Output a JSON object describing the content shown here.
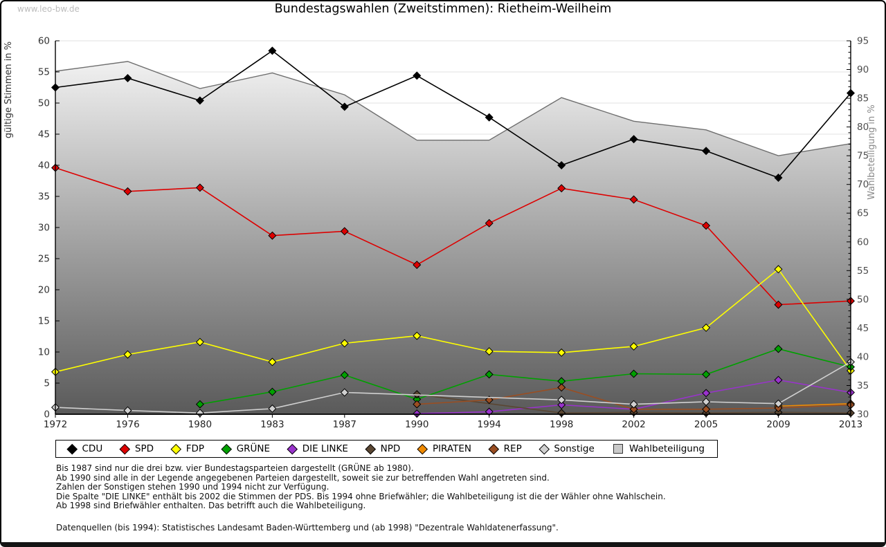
{
  "watermark": "www.leo-bw.de",
  "title": "Bundestagswahlen (Zweitstimmen): Rietheim-Weilheim",
  "chart_data": {
    "type": "line",
    "categories": [
      "1972",
      "1976",
      "1980",
      "1983",
      "1987",
      "1990",
      "1994",
      "1998",
      "2002",
      "2005",
      "2009",
      "2013"
    ],
    "ylabel_left": "gültige Stimmen in %",
    "ylabel_right": "Wahlbeteiligung in %",
    "ylim_left": [
      0,
      60
    ],
    "ylim_right": [
      30,
      95
    ],
    "ytick_step": 5,
    "grid": true,
    "legend_position": "bottom",
    "marker": "diamond",
    "series": [
      {
        "name": "CDU",
        "color": "#000000",
        "axis": "left",
        "kind": "line",
        "values": [
          52.5,
          54.0,
          50.4,
          58.4,
          49.4,
          54.4,
          47.7,
          40.0,
          44.2,
          42.3,
          38.0,
          51.6
        ]
      },
      {
        "name": "SPD",
        "color": "#dd0000",
        "axis": "left",
        "kind": "line",
        "values": [
          39.6,
          35.8,
          36.4,
          28.7,
          29.4,
          24.0,
          30.7,
          36.3,
          34.5,
          30.3,
          17.6,
          18.2
        ]
      },
      {
        "name": "FDP",
        "color": "#ffff00",
        "axis": "left",
        "kind": "line",
        "values": [
          6.8,
          9.6,
          11.6,
          8.4,
          11.4,
          12.6,
          10.1,
          9.9,
          10.9,
          13.9,
          23.3,
          7.0
        ]
      },
      {
        "name": "GRÜNE",
        "color": "#00a000",
        "axis": "left",
        "kind": "line",
        "values": [
          null,
          null,
          1.6,
          3.6,
          6.3,
          2.4,
          6.4,
          5.3,
          6.5,
          6.4,
          10.5,
          7.6
        ]
      },
      {
        "name": "DIE LINKE",
        "color": "#9933cc",
        "axis": "left",
        "kind": "line",
        "values": [
          null,
          null,
          null,
          null,
          null,
          0.1,
          0.4,
          1.5,
          0.8,
          3.4,
          5.5,
          3.5
        ]
      },
      {
        "name": "NPD",
        "color": "#5a4632",
        "axis": "left",
        "kind": "line",
        "values": [
          null,
          null,
          null,
          null,
          null,
          3.2,
          null,
          0.2,
          0.3,
          0.2,
          0.3,
          0.2
        ]
      },
      {
        "name": "PIRATEN",
        "color": "#f08a00",
        "axis": "left",
        "kind": "line",
        "values": [
          null,
          null,
          null,
          null,
          null,
          null,
          null,
          null,
          null,
          null,
          1.3,
          1.7
        ]
      },
      {
        "name": "REP",
        "color": "#9a4e22",
        "axis": "left",
        "kind": "line",
        "values": [
          null,
          null,
          null,
          null,
          null,
          1.6,
          2.3,
          4.3,
          0.8,
          0.8,
          1.0,
          1.5
        ]
      },
      {
        "name": "Sonstige",
        "color": "#d0d0d0",
        "axis": "left",
        "kind": "line",
        "values": [
          1.1,
          0.6,
          0.2,
          0.9,
          3.5,
          null,
          null,
          2.3,
          1.6,
          2.0,
          1.7,
          8.4
        ]
      },
      {
        "name": "Wahlbeteiligung",
        "color": "#c9c9c9",
        "axis": "right",
        "kind": "area",
        "values": [
          89.7,
          91.4,
          86.7,
          89.4,
          85.6,
          77.7,
          77.7,
          85.1,
          81.0,
          79.5,
          75.0,
          77.1
        ]
      }
    ]
  },
  "notes": [
    "Bis 1987 sind nur die drei bzw. vier Bundestagsparteien dargestellt (GRÜNE ab 1980).",
    "Ab 1990 sind alle in der Legende angegebenen Parteien dargestellt, soweit sie zur betreffenden Wahl angetreten sind.",
    "Zahlen der Sonstigen stehen 1990 und 1994 nicht zur Verfügung.",
    "Die Spalte \"DIE LINKE\" enthält bis 2002 die Stimmen der PDS. Bis 1994 ohne Briefwähler; die Wahlbeteiligung ist die der Wähler ohne Wahlschein.",
    "Ab 1998 sind Briefwähler enthalten. Das betrifft auch die Wahlbeteiligung."
  ],
  "source": "Datenquellen (bis 1994): Statistisches Landesamt Baden-Württemberg und (ab 1998) \"Dezentrale Wahldatenerfassung\"."
}
